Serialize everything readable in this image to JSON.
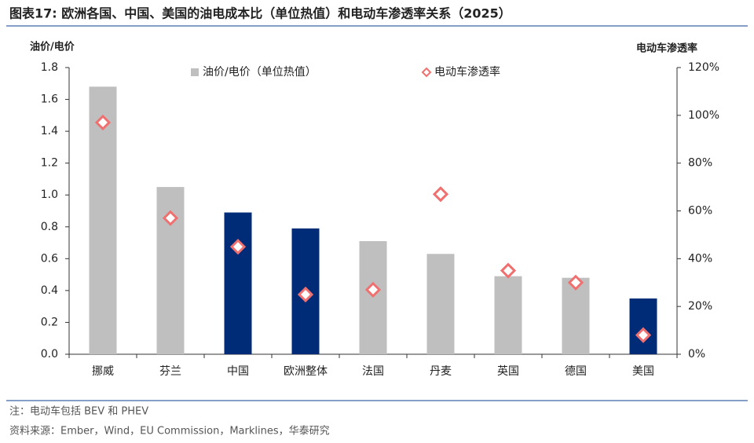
{
  "chart_data": {
    "type": "bar",
    "title": "图表17:  欧洲各国、中国、美国的油电成本比（单位热值）和电动车渗透率关系（2025）",
    "y_label": "油价/电价",
    "y2_label": "电动车渗透率",
    "categories": [
      "挪威",
      "芬兰",
      "中国",
      "欧洲整体",
      "法国",
      "丹麦",
      "英国",
      "德国",
      "美国"
    ],
    "series": [
      {
        "name": "油价/电价（单位热值）",
        "type": "bar",
        "color": "#bfbfbf",
        "bar_colors": [
          "#bfbfbf",
          "#bfbfbf",
          "#002c77",
          "#002c77",
          "#bfbfbf",
          "#bfbfbf",
          "#bfbfbf",
          "#bfbfbf",
          "#002c77"
        ],
        "values": [
          1.68,
          1.05,
          0.89,
          0.79,
          0.71,
          0.63,
          0.49,
          0.48,
          0.35
        ]
      },
      {
        "name": "电动车渗透率",
        "type": "scatter",
        "axis": "y2",
        "color": "#f07070",
        "values": [
          97,
          57,
          45,
          25,
          27,
          67,
          35,
          30,
          8
        ]
      }
    ],
    "ylim": [
      0,
      1.8
    ],
    "yticks": [
      {
        "value": 0,
        "label": "0.0"
      },
      0.2,
      0.4,
      0.6,
      0.8,
      {
        "value": 1,
        "label": "1.0"
      },
      1.2,
      1.4,
      1.6,
      1.8
    ],
    "y2lim": [
      0,
      120
    ],
    "y2ticks": [
      {
        "value": 0,
        "label": "0%"
      },
      {
        "value": 20,
        "label": "20%"
      },
      {
        "value": 40,
        "label": "40%"
      },
      {
        "value": 60,
        "label": "60%"
      },
      {
        "value": 80,
        "label": "80%"
      },
      {
        "value": 100,
        "label": "100%"
      },
      {
        "value": 120,
        "label": "120%"
      }
    ],
    "legend": "top",
    "grid": false
  },
  "footer": {
    "note": "注：电动车包括 BEV 和 PHEV",
    "source": "资料来源：Ember，Wind，EU Commission，Marklines，华泰研究"
  }
}
